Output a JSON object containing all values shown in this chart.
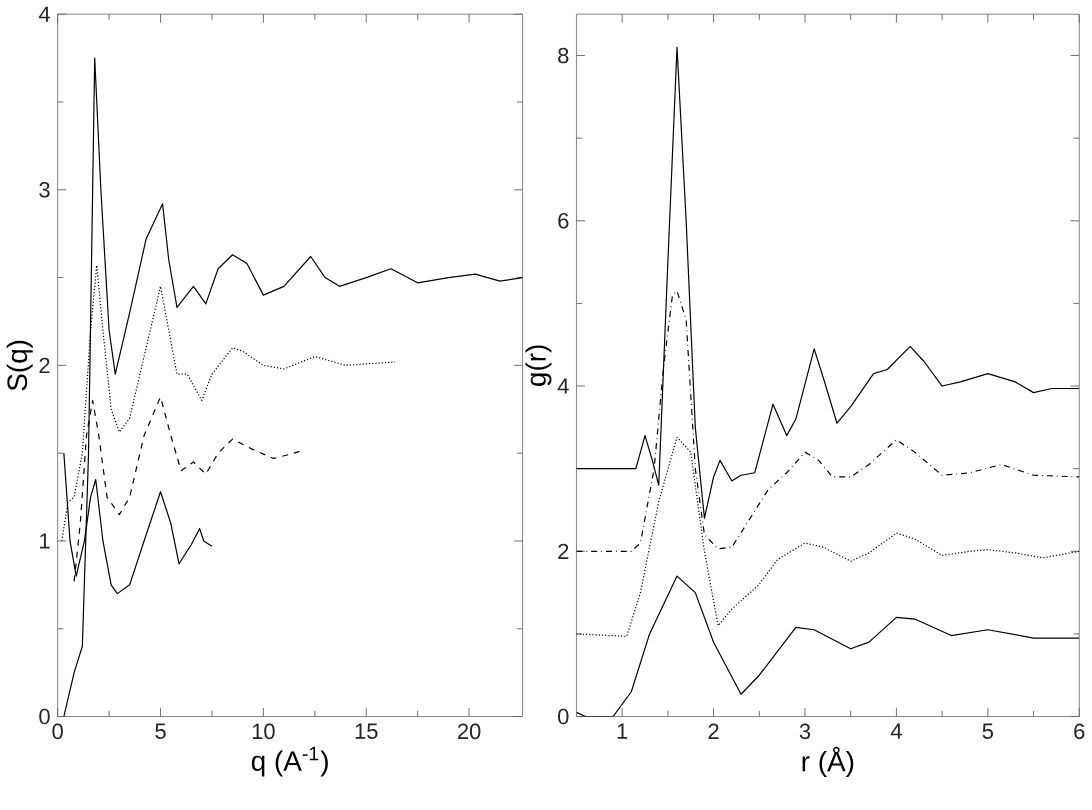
{
  "chart_data": [
    {
      "type": "line",
      "xlabel": "q (A$^{-1}$)",
      "ylabel": "S(q)",
      "xlim": [
        0,
        22.6
      ],
      "ylim": [
        0,
        4
      ],
      "xticks": [
        0,
        5,
        10,
        15,
        20
      ],
      "yticks": [
        0,
        1,
        2,
        3,
        4
      ],
      "grid": false,
      "marker": "none",
      "series": [
        {
          "color": "#000000",
          "line_style": "solid",
          "x": [
            0.3,
            0.8,
            1.2,
            1.5,
            1.8,
            2.1,
            2.5,
            2.8,
            3.5,
            4.3,
            5.1,
            5.4,
            5.8,
            6.6,
            7.2,
            7.8,
            8.5,
            9.2,
            10,
            11,
            12.3,
            13,
            13.7,
            15,
            16.2,
            17.5,
            19,
            20.3,
            21.5,
            22.6
          ],
          "values": [
            0,
            0.25,
            0.4,
            1.5,
            3.75,
            3.0,
            2.2,
            1.95,
            2.3,
            2.72,
            2.92,
            2.6,
            2.33,
            2.45,
            2.35,
            2.55,
            2.63,
            2.58,
            2.4,
            2.45,
            2.62,
            2.5,
            2.45,
            2.5,
            2.55,
            2.47,
            2.5,
            2.52,
            2.48,
            2.5
          ]
        },
        {
          "color": "#000000",
          "line_style": "dotted",
          "x": [
            0.2,
            0.5,
            0.8,
            1.2,
            1.6,
            1.9,
            2.2,
            2.6,
            3,
            3.5,
            4,
            4.5,
            5,
            5.4,
            5.8,
            6.3,
            7,
            7.5,
            8.5,
            9,
            10,
            11,
            12.5,
            14,
            16.4
          ],
          "values": [
            1.0,
            1.22,
            1.25,
            1.5,
            2.2,
            2.57,
            2.2,
            1.75,
            1.62,
            1.7,
            1.95,
            2.2,
            2.45,
            2.2,
            1.95,
            1.95,
            1.8,
            1.95,
            2.1,
            2.08,
            2.0,
            1.98,
            2.05,
            2.0,
            2.02
          ]
        },
        {
          "color": "#000000",
          "line_style": "dashed",
          "x": [
            0.8,
            1.1,
            1.4,
            1.7,
            2.0,
            2.4,
            3.0,
            3.5,
            4.2,
            5.0,
            5.5,
            6.0,
            6.6,
            7.2,
            7.8,
            8.5,
            9.5,
            10.5,
            11.5,
            12
          ],
          "values": [
            0.77,
            1.1,
            1.6,
            1.8,
            1.6,
            1.25,
            1.15,
            1.25,
            1.6,
            1.82,
            1.6,
            1.4,
            1.45,
            1.38,
            1.5,
            1.58,
            1.52,
            1.47,
            1.5,
            1.52
          ]
        },
        {
          "color": "#000000",
          "line_style": "solid",
          "x": [
            0.3,
            0.6,
            0.9,
            1.3,
            1.6,
            1.85,
            2.2,
            2.6,
            2.9,
            3.5,
            4.2,
            5.0,
            5.5,
            5.9,
            6.5,
            6.9,
            7.1,
            7.5
          ],
          "values": [
            1.5,
            1.0,
            0.8,
            1.0,
            1.25,
            1.35,
            1.0,
            0.75,
            0.7,
            0.75,
            1.0,
            1.28,
            1.1,
            0.87,
            0.98,
            1.07,
            1.0,
            0.97
          ]
        }
      ]
    },
    {
      "type": "line",
      "xlabel": "r (Å)",
      "ylabel": "g(r)",
      "xlim": [
        0.5,
        6
      ],
      "ylim": [
        0,
        8.5
      ],
      "xticks": [
        1,
        2,
        3,
        4,
        5,
        6
      ],
      "yticks": [
        0,
        2,
        4,
        6,
        8
      ],
      "grid": false,
      "marker": "none",
      "series": [
        {
          "color": "#000000",
          "line_style": "solid",
          "x": [
            0.5,
            1.15,
            1.25,
            1.33,
            1.4,
            1.5,
            1.6,
            1.7,
            1.8,
            1.9,
            2.0,
            2.07,
            2.2,
            2.3,
            2.45,
            2.65,
            2.8,
            2.9,
            3.1,
            3.2,
            3.35,
            3.5,
            3.75,
            3.9,
            4.15,
            4.3,
            4.5,
            4.7,
            5.0,
            5.3,
            5.5,
            5.7,
            6.0
          ],
          "values": [
            3.0,
            3.0,
            3.4,
            3.1,
            2.8,
            5.5,
            8.1,
            6,
            3.5,
            2.4,
            2.9,
            3.1,
            2.85,
            2.92,
            2.95,
            3.78,
            3.4,
            3.6,
            4.45,
            4.1,
            3.55,
            3.75,
            4.15,
            4.2,
            4.48,
            4.3,
            4.0,
            4.05,
            4.15,
            4.05,
            3.92,
            3.97,
            3.97
          ]
        },
        {
          "color": "#000000",
          "line_style": "dashdot",
          "x": [
            0.5,
            1.1,
            1.2,
            1.35,
            1.45,
            1.55,
            1.6,
            1.7,
            1.8,
            1.9,
            2.05,
            2.2,
            2.4,
            2.6,
            2.8,
            3.0,
            3.15,
            3.3,
            3.5,
            3.7,
            4.0,
            4.2,
            4.5,
            4.8,
            5.15,
            5.5,
            6.0
          ],
          "values": [
            2.0,
            2.0,
            2.1,
            3.0,
            4.2,
            5.1,
            5.15,
            4.8,
            3.0,
            2.2,
            2.03,
            2.05,
            2.4,
            2.75,
            2.95,
            3.2,
            3.1,
            2.9,
            2.9,
            3.05,
            3.35,
            3.2,
            2.92,
            2.95,
            3.05,
            2.92,
            2.9
          ]
        },
        {
          "color": "#000000",
          "line_style": "dotted",
          "x": [
            0.5,
            1.05,
            1.2,
            1.4,
            1.6,
            1.75,
            1.9,
            2.05,
            2.2,
            2.5,
            2.7,
            3.0,
            3.2,
            3.5,
            3.7,
            4.0,
            4.2,
            4.5,
            4.8,
            5.0,
            5.3,
            5.6,
            6.0
          ],
          "values": [
            1.0,
            0.97,
            1.5,
            2.6,
            3.38,
            3.2,
            2.0,
            1.1,
            1.3,
            1.6,
            1.9,
            2.1,
            2.05,
            1.88,
            1.98,
            2.22,
            2.15,
            1.95,
            2.0,
            2.02,
            1.98,
            1.92,
            2.0
          ]
        },
        {
          "color": "#000000",
          "line_style": "solid",
          "x": [
            0.5,
            0.6,
            0.9,
            1.1,
            1.3,
            1.6,
            1.8,
            2.0,
            2.3,
            2.5,
            2.9,
            3.1,
            3.5,
            3.7,
            4.0,
            4.2,
            4.6,
            5.0,
            5.5,
            6.0
          ],
          "values": [
            0.05,
            0,
            0,
            0.3,
            1.0,
            1.7,
            1.5,
            0.9,
            0.27,
            0.5,
            1.08,
            1.05,
            0.82,
            0.9,
            1.2,
            1.18,
            0.98,
            1.05,
            0.95,
            0.95
          ]
        }
      ]
    }
  ]
}
